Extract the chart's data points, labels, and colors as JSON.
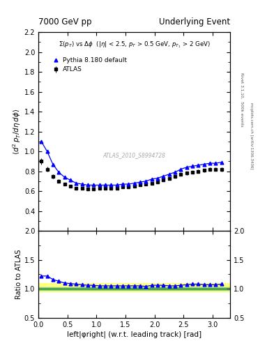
{
  "title_left": "7000 GeV pp",
  "title_right": "Underlying Event",
  "xlabel": "left|φright| (w.r.t. leading track) [rad]",
  "ylabel_main": "⟨d² p_T/dηdφ⟩",
  "ylabel_ratio": "Ratio to ATLAS",
  "annotation": "ATLAS_2010_S8994728",
  "legend_label1": "ATLAS",
  "legend_label2": "Pythia 8.180 default",
  "right_label1": "Rivet 3.1.10,  500k events",
  "right_label2": "mcplots.cern.ch [arXiv:1306.3436]",
  "subtitle": "Σ(p_T) vs Δφ  (|η| < 2.5, p_T > 0.5 GeV, p_{T1} > 2 GeV)",
  "xlim": [
    0,
    3.3
  ],
  "ylim_main": [
    0.2,
    2.2
  ],
  "ylim_ratio": [
    0.5,
    2.0
  ],
  "yticks_main": [
    0.4,
    0.6,
    0.8,
    1.0,
    1.2,
    1.4,
    1.6,
    1.8,
    2.0,
    2.2
  ],
  "yticks_ratio": [
    0.5,
    1.0,
    1.5,
    2.0
  ],
  "data_x": [
    0.05,
    0.15,
    0.25,
    0.35,
    0.45,
    0.55,
    0.65,
    0.75,
    0.85,
    0.95,
    1.05,
    1.15,
    1.25,
    1.35,
    1.45,
    1.55,
    1.65,
    1.75,
    1.85,
    1.95,
    2.05,
    2.15,
    2.25,
    2.35,
    2.45,
    2.55,
    2.65,
    2.75,
    2.85,
    2.95,
    3.05,
    3.15
  ],
  "atlas_y": [
    0.9,
    0.82,
    0.75,
    0.7,
    0.67,
    0.65,
    0.63,
    0.63,
    0.62,
    0.62,
    0.63,
    0.63,
    0.63,
    0.63,
    0.64,
    0.64,
    0.65,
    0.66,
    0.67,
    0.68,
    0.69,
    0.71,
    0.73,
    0.75,
    0.77,
    0.78,
    0.79,
    0.8,
    0.81,
    0.82,
    0.82,
    0.82
  ],
  "atlas_yerr": [
    0.03,
    0.025,
    0.02,
    0.018,
    0.016,
    0.015,
    0.014,
    0.014,
    0.013,
    0.013,
    0.013,
    0.013,
    0.013,
    0.013,
    0.013,
    0.013,
    0.013,
    0.013,
    0.014,
    0.014,
    0.015,
    0.015,
    0.016,
    0.016,
    0.017,
    0.017,
    0.017,
    0.018,
    0.018,
    0.019,
    0.019,
    0.02
  ],
  "pythia_y": [
    1.1,
    1.0,
    0.87,
    0.79,
    0.74,
    0.71,
    0.68,
    0.67,
    0.66,
    0.66,
    0.66,
    0.66,
    0.66,
    0.66,
    0.67,
    0.67,
    0.68,
    0.69,
    0.7,
    0.72,
    0.73,
    0.75,
    0.77,
    0.79,
    0.82,
    0.84,
    0.85,
    0.86,
    0.87,
    0.88,
    0.88,
    0.89
  ],
  "ratio_y": [
    1.22,
    1.22,
    1.16,
    1.13,
    1.1,
    1.09,
    1.08,
    1.07,
    1.06,
    1.06,
    1.05,
    1.05,
    1.05,
    1.05,
    1.05,
    1.05,
    1.05,
    1.05,
    1.04,
    1.06,
    1.06,
    1.06,
    1.05,
    1.05,
    1.06,
    1.07,
    1.08,
    1.08,
    1.07,
    1.07,
    1.07,
    1.08
  ],
  "atlas_color": "#000000",
  "pythia_color": "#0000ff",
  "band_yellow": "#ffff80",
  "band_green": "#80cc80",
  "background_color": "#ffffff"
}
